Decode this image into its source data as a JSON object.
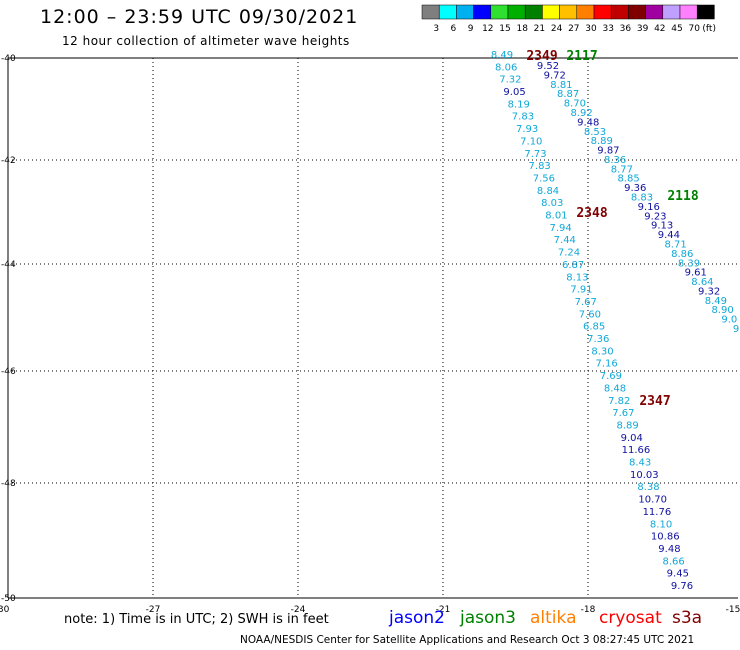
{
  "header": {
    "title": "12:00 – 23:59 UTC 09/30/2021",
    "subtitle": "12 hour collection of altimeter wave heights"
  },
  "color_scale": {
    "labels": [
      "3",
      "6",
      "9",
      "12",
      "15",
      "18",
      "21",
      "24",
      "27",
      "30",
      "33",
      "36",
      "39",
      "42",
      "45",
      "70",
      "(ft)"
    ],
    "colors": [
      "#7f7f7f",
      "#00ffff",
      "#00b0f0",
      "#0000ff",
      "#30e030",
      "#00b000",
      "#008000",
      "#ffff00",
      "#ffc000",
      "#ff8000",
      "#ff0000",
      "#c00000",
      "#800000",
      "#a000a0",
      "#c0a0ff",
      "#ff80ff",
      "#000000"
    ]
  },
  "axes": {
    "lat_labels": [
      "-40",
      "-42",
      "-44",
      "-46",
      "-48",
      "-50"
    ],
    "lon_labels": [
      "-30",
      "-27",
      "-24",
      "-21",
      "-18",
      "-15"
    ]
  },
  "colors": {
    "light": "#10a8d8",
    "dark": "#1010a0",
    "pass_red": "#800000",
    "pass_green": "#008000"
  },
  "passes": [
    {
      "label": "2349",
      "color": "pass_red"
    },
    {
      "label": "2117",
      "color": "pass_green"
    },
    {
      "label": "2118",
      "color": "pass_green"
    },
    {
      "label": "2348",
      "color": "pass_red"
    },
    {
      "label": "2347",
      "color": "pass_red"
    }
  ],
  "track_a": [
    {
      "v": "8.49",
      "c": "light"
    },
    {
      "v": "8.06",
      "c": "light"
    },
    {
      "v": "7.32",
      "c": "light"
    },
    {
      "v": "9.05",
      "c": "dark"
    },
    {
      "v": "8.19",
      "c": "light"
    },
    {
      "v": "7.83",
      "c": "light"
    },
    {
      "v": "7.93",
      "c": "light"
    },
    {
      "v": "7.10",
      "c": "light"
    },
    {
      "v": "7.73",
      "c": "light"
    },
    {
      "v": "7.83",
      "c": "light"
    },
    {
      "v": "7.56",
      "c": "light"
    },
    {
      "v": "8.84",
      "c": "light"
    },
    {
      "v": "8.03",
      "c": "light"
    },
    {
      "v": "8.01",
      "c": "light"
    },
    {
      "v": "7.94",
      "c": "light"
    },
    {
      "v": "7.44",
      "c": "light"
    },
    {
      "v": "7.24",
      "c": "light"
    },
    {
      "v": "6.87",
      "c": "light"
    },
    {
      "v": "8.13",
      "c": "light"
    },
    {
      "v": "7.91",
      "c": "light"
    },
    {
      "v": "7.67",
      "c": "light"
    },
    {
      "v": "7.60",
      "c": "light"
    },
    {
      "v": "6.85",
      "c": "light"
    },
    {
      "v": "7.36",
      "c": "light"
    },
    {
      "v": "8.30",
      "c": "light"
    },
    {
      "v": "7.16",
      "c": "light"
    },
    {
      "v": "7.69",
      "c": "light"
    },
    {
      "v": "8.48",
      "c": "light"
    },
    {
      "v": "7.82",
      "c": "light"
    },
    {
      "v": "7.67",
      "c": "light"
    },
    {
      "v": "8.89",
      "c": "light"
    },
    {
      "v": "9.04",
      "c": "dark"
    },
    {
      "v": "11.66",
      "c": "dark"
    },
    {
      "v": "8.43",
      "c": "light"
    },
    {
      "v": "10.03",
      "c": "dark"
    },
    {
      "v": "8.38",
      "c": "light"
    },
    {
      "v": "10.70",
      "c": "dark"
    },
    {
      "v": "11.76",
      "c": "dark"
    },
    {
      "v": "8.10",
      "c": "light"
    },
    {
      "v": "10.86",
      "c": "dark"
    },
    {
      "v": "9.48",
      "c": "dark"
    },
    {
      "v": "8.66",
      "c": "light"
    },
    {
      "v": "9.45",
      "c": "dark"
    },
    {
      "v": "9.76",
      "c": "dark"
    }
  ],
  "track_b": [
    {
      "v": "9.52",
      "c": "dark"
    },
    {
      "v": "9.72",
      "c": "dark"
    },
    {
      "v": "8.81",
      "c": "light"
    },
    {
      "v": "8.87",
      "c": "light"
    },
    {
      "v": "8.70",
      "c": "light"
    },
    {
      "v": "8.92",
      "c": "light"
    },
    {
      "v": "9.48",
      "c": "dark"
    },
    {
      "v": "8.53",
      "c": "light"
    },
    {
      "v": "8.89",
      "c": "light"
    },
    {
      "v": "9.87",
      "c": "dark"
    },
    {
      "v": "8.36",
      "c": "light"
    },
    {
      "v": "8.77",
      "c": "light"
    },
    {
      "v": "8.85",
      "c": "light"
    },
    {
      "v": "9.36",
      "c": "dark"
    },
    {
      "v": "8.83",
      "c": "light"
    },
    {
      "v": "9.16",
      "c": "dark"
    },
    {
      "v": "9.23",
      "c": "dark"
    },
    {
      "v": "9.13",
      "c": "dark"
    },
    {
      "v": "9.44",
      "c": "dark"
    },
    {
      "v": "8.71",
      "c": "light"
    },
    {
      "v": "8.86",
      "c": "light"
    },
    {
      "v": "8.39",
      "c": "light"
    },
    {
      "v": "9.61",
      "c": "dark"
    },
    {
      "v": "8.64",
      "c": "light"
    },
    {
      "v": "9.32",
      "c": "dark"
    },
    {
      "v": "8.49",
      "c": "light"
    },
    {
      "v": "8.90",
      "c": "light"
    },
    {
      "v": "9.0",
      "c": "light"
    },
    {
      "v": "9",
      "c": "light"
    }
  ],
  "footer": {
    "note": "note: 1) Time is in UTC; 2) SWH is in feet",
    "satellites": [
      {
        "name": "jason2",
        "color": "#0000ff"
      },
      {
        "name": "jason3",
        "color": "#008000"
      },
      {
        "name": "altika",
        "color": "#ff8000"
      },
      {
        "name": "cryosat",
        "color": "#ff0000"
      },
      {
        "name": "s3a",
        "color": "#800000"
      }
    ],
    "credit": "NOAA/NESDIS Center for Satellite Applications and Research   Oct  3 08:27:45 UTC 2021"
  }
}
